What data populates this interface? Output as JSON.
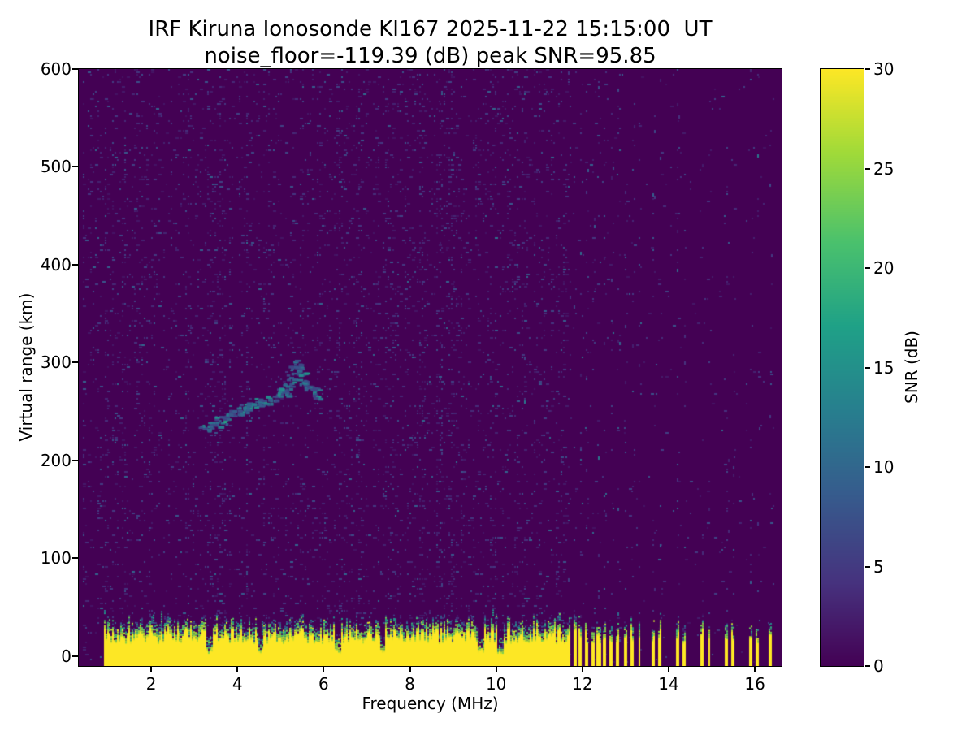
{
  "chart_data": {
    "type": "heatmap",
    "title": "IRF Kiruna Ionosonde KI167 2025-11-22 15:15:00  UT",
    "subtitle": "noise_floor=-119.39 (dB) peak SNR=95.85",
    "xlabel": "Frequency (MHz)",
    "ylabel": "Virtual range (km)",
    "colorbar_label": "SNR (dB)",
    "noise_floor_db": -119.39,
    "peak_snr_db": 95.85,
    "station": "IRF Kiruna Ionosonde KI167",
    "timestamp_ut": "2025-11-22 15:15:00 UT",
    "xlim": [
      0.32,
      16.62
    ],
    "ylim": [
      -10,
      600
    ],
    "x_ticks": [
      2,
      4,
      6,
      8,
      10,
      12,
      14,
      16
    ],
    "y_ticks": [
      0,
      100,
      200,
      300,
      400,
      500,
      600
    ],
    "colorbar_ticks": [
      0,
      5,
      10,
      15,
      20,
      25,
      30
    ],
    "colorbar_range": [
      0,
      30
    ],
    "colormap": "viridis",
    "colormap_stops": [
      [
        0.0,
        "#440154"
      ],
      [
        0.14,
        "#46327e"
      ],
      [
        0.29,
        "#365c8d"
      ],
      [
        0.43,
        "#277f8e"
      ],
      [
        0.57,
        "#1fa187"
      ],
      [
        0.71,
        "#4ac16d"
      ],
      [
        0.86,
        "#a0da39"
      ],
      [
        1.0,
        "#fde725"
      ]
    ],
    "data_freq_range": [
      0.9,
      16.45
    ],
    "noise": {
      "start_mhz": 0.42,
      "speckle_prob": 0.085,
      "sparse_above_mhz": 11.62,
      "sparse_prob": 0.013
    },
    "ground_band": {
      "top_km": 29,
      "start_mhz": 0.9,
      "notches": [
        3.33,
        4.52,
        6.32,
        7.35,
        9.62,
        10.08
      ],
      "bars": [
        [
          11.62,
          11.7
        ],
        [
          11.76,
          11.84
        ],
        [
          11.9,
          11.98
        ],
        [
          12.04,
          12.12
        ],
        [
          12.18,
          12.26
        ],
        [
          12.32,
          12.4
        ],
        [
          12.46,
          12.54
        ],
        [
          12.62,
          12.69
        ],
        [
          12.77,
          12.85
        ],
        [
          12.94,
          13.02
        ],
        [
          13.11,
          13.18
        ],
        [
          13.27,
          13.34
        ],
        [
          13.59,
          13.66
        ],
        [
          13.75,
          13.82
        ],
        [
          14.15,
          14.22
        ],
        [
          14.32,
          14.39
        ],
        [
          14.73,
          14.8
        ],
        [
          14.89,
          14.96
        ],
        [
          15.29,
          15.36
        ],
        [
          15.45,
          15.52
        ],
        [
          15.85,
          15.92
        ],
        [
          16.01,
          16.08
        ],
        [
          16.29,
          16.38
        ]
      ]
    },
    "echo_trace": [
      [
        3.2,
        233
      ],
      [
        3.32,
        236
      ],
      [
        3.45,
        239
      ],
      [
        3.6,
        242
      ],
      [
        3.72,
        245
      ],
      [
        3.85,
        248
      ],
      [
        4.0,
        251
      ],
      [
        4.15,
        254
      ],
      [
        4.3,
        257
      ],
      [
        4.45,
        260
      ],
      [
        4.6,
        262
      ],
      [
        4.75,
        265
      ],
      [
        4.9,
        268
      ],
      [
        5.0,
        271
      ],
      [
        5.1,
        275
      ],
      [
        5.18,
        280
      ],
      [
        5.24,
        287
      ],
      [
        5.3,
        294
      ],
      [
        5.36,
        299
      ],
      [
        5.44,
        291
      ],
      [
        5.5,
        283
      ],
      [
        5.58,
        278
      ],
      [
        5.68,
        274
      ],
      [
        5.78,
        271
      ],
      [
        5.85,
        268
      ]
    ],
    "interference_columns": [
      {
        "f": 8.68,
        "d": 0.2
      },
      {
        "f": 10.65,
        "d": 0.05
      },
      {
        "f": 11.2,
        "d": 0.05
      },
      {
        "f": 11.66,
        "d": 0.09
      },
      {
        "f": 11.8,
        "d": 0.07
      },
      {
        "f": 11.94,
        "d": 0.1
      },
      {
        "f": 12.08,
        "d": 0.08
      },
      {
        "f": 12.22,
        "d": 0.09
      },
      {
        "f": 12.36,
        "d": 0.07
      },
      {
        "f": 12.5,
        "d": 0.09
      },
      {
        "f": 12.66,
        "d": 0.08
      },
      {
        "f": 12.81,
        "d": 0.07
      },
      {
        "f": 12.98,
        "d": 0.08
      },
      {
        "f": 13.15,
        "d": 0.06
      },
      {
        "f": 13.31,
        "d": 0.05
      },
      {
        "f": 13.63,
        "d": 0.06
      },
      {
        "f": 13.79,
        "d": 0.05
      },
      {
        "f": 14.19,
        "d": 0.06
      },
      {
        "f": 14.36,
        "d": 0.05
      },
      {
        "f": 14.77,
        "d": 0.05
      },
      {
        "f": 14.93,
        "d": 0.06
      },
      {
        "f": 15.33,
        "d": 0.05
      },
      {
        "f": 15.49,
        "d": 0.05
      },
      {
        "f": 15.89,
        "d": 0.06
      },
      {
        "f": 16.05,
        "d": 0.05
      },
      {
        "f": 16.33,
        "d": 0.04
      }
    ]
  }
}
